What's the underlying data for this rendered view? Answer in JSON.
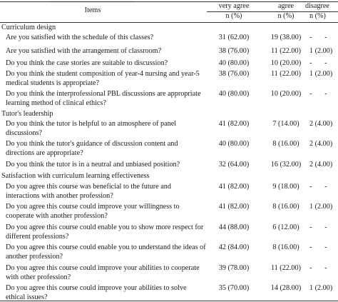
{
  "header": {
    "items_label": "Items",
    "col1_label": "very agree",
    "col2_label": "agree",
    "col3_label": "disagree",
    "col1_sub": "n (%)",
    "col2_sub": "n (%)",
    "col3_sub": "n (%)"
  },
  "sections": [
    {
      "title": "Curriculum design",
      "rows": [
        {
          "item": "Are you satisfied with the schedule of this classes?",
          "c1": "31 (62.00)",
          "c2": "19 (38.00)",
          "c3": "-       -"
        },
        {
          "item": "Are you satisfied with the arrangement of classroom?",
          "c1": "38 (76.00)",
          "c2": "11 (22.00)",
          "c3": "1 (2.00)"
        },
        {
          "item": "Do you think the case stories are suitable to discussion?",
          "c1": "40 (80.00)",
          "c2": "10 (20.00)",
          "c3": "-       -"
        },
        {
          "item": "Do you think the student composition of year-4 nursing and year-5 medical students is appropriate?",
          "c1": "38 (76.00)",
          "c2": "11 (22.00)",
          "c3": "1 (2.00)"
        },
        {
          "item": "Do you think the interprofessional PBL discussions are appropriate learning method of clinical ethics?",
          "c1": "40 (80.00)",
          "c2": "10 (20.00)",
          "c3": "-       -"
        }
      ]
    },
    {
      "title": "Tutor's leadership",
      "rows": [
        {
          "item": "Do you think the tutor is helpful to an atmosphere of panel discussions?",
          "c1": "41 (82.00)",
          "c2": "7 (14.00)",
          "c3": "2 (4.00)"
        },
        {
          "item": "Do you think the tutor's guidance of discussion content and directions are appropriate?",
          "c1": "40 (80.00)",
          "c2": "8 (16.00)",
          "c3": "2 (4.00)"
        },
        {
          "item": "Do you think the tutor is in a neutral and unbiased position?",
          "c1": "32 (64.00)",
          "c2": "16 (32.00)",
          "c3": "2 (4.00)"
        }
      ]
    },
    {
      "title": "Satisfaction with curriculum learning effectiveness",
      "rows": [
        {
          "item": "Do you agree this course was beneficial to the future and interactions with another profession?",
          "c1": "41 (82.00)",
          "c2": "9 (18.00)",
          "c3": "-       -"
        },
        {
          "item": "Do you agree this course could improve your willingness to cooperate with another profession?",
          "c1": "41 (82.00)",
          "c2": "8 (16.00)",
          "c3": "1 (2.00)"
        },
        {
          "item": "Do you agree this course could enable you to show more respect for different professions?",
          "c1": "44 (88.00)",
          "c2": "6 (12.00)",
          "c3": "-       -"
        },
        {
          "item": "Do you agree this course could enable you to understand the ideas of another profession?",
          "c1": "42 (84.00)",
          "c2": "8 (16.00)",
          "c3": "-       -"
        },
        {
          "item": "Do you agree this course could improve your abilities to cooperate with other profession?",
          "c1": "39 (78.00)",
          "c2": "11 (22.00)",
          "c3": "-       -"
        },
        {
          "item": "Do you agree this course could improve your abilities to solve ethical issues?",
          "c1": "35 (70.00)",
          "c2": "14 (28.00)",
          "c3": "1 (2.00)"
        }
      ]
    }
  ]
}
